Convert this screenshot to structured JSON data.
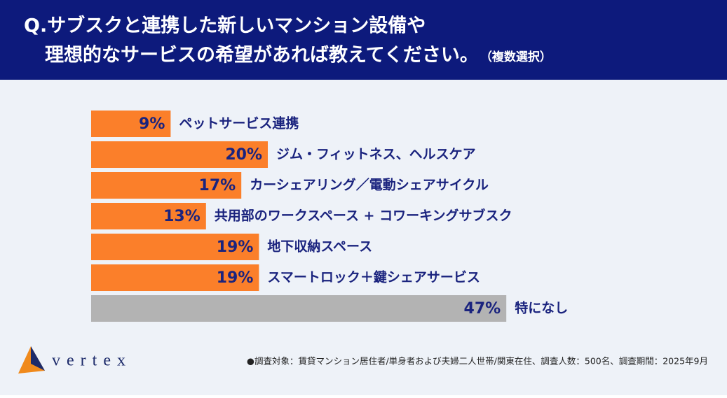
{
  "chart_data": {
    "type": "bar",
    "orientation": "horizontal",
    "title_lines": [
      "Q.サブスクと連携した新しいマンション設備や",
      "理想的なサービスの希望があれば教えてください。"
    ],
    "title_note": "（複数選択）",
    "categories": [
      "ペットサービス連携",
      "ジム・フィットネス、ヘルスケア",
      "カーシェアリング／電動シェアサイクル",
      "共用部のワークスペース + コワーキングサブスク",
      "地下収納スペース",
      "スマートロック＋鍵シェアサービス",
      "特になし"
    ],
    "values": [
      9,
      20,
      17,
      13,
      19,
      19,
      47
    ],
    "value_labels": [
      "9%",
      "20%",
      "17%",
      "13%",
      "19%",
      "19%",
      "47%"
    ],
    "colors": [
      "#fb7f2a",
      "#fb7f2a",
      "#fb7f2a",
      "#fb7f2a",
      "#fb7f2a",
      "#fb7f2a",
      "#b3b3b3"
    ],
    "footnote": "●調査対象：賃貸マンション居住者/単身者および夫婦二人世帯/関東在住、調査人数：500名、調査期間：2025年9月",
    "logo": "vertex"
  }
}
